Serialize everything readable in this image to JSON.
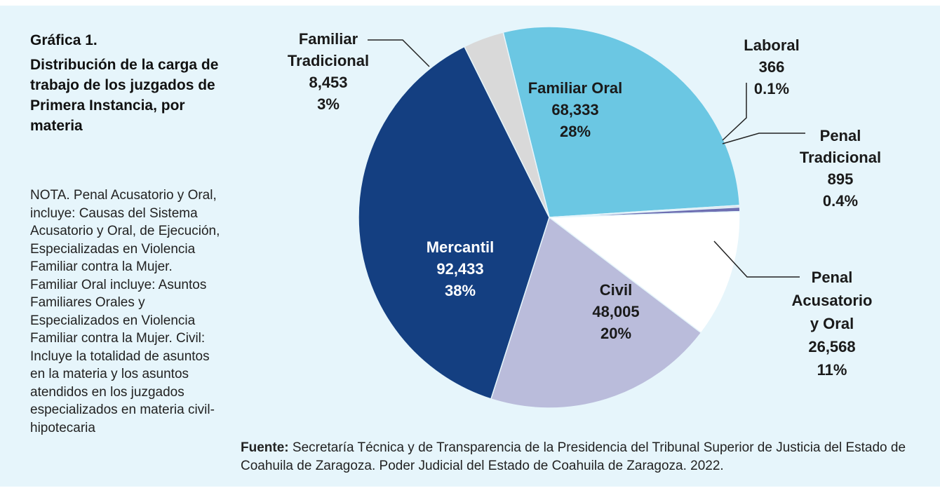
{
  "title": {
    "line1": "Gráfica 1.",
    "line2": "Distribución de la carga de trabajo de los juzgados de Primera Instancia, por materia"
  },
  "note": "NOTA. Penal Acusatorio y Oral, incluye: Causas del Sistema Acusatorio y Oral, de Ejecución, Especializadas en Violencia Familiar contra la Mujer. Familiar Oral incluye: Asuntos Familiares Orales y Especializados en Violencia Familiar contra la Mujer. Civil: Incluye la totalidad de asuntos en la materia y los asuntos atendidos en los juzgados especializados en materia civil-hipotecaria",
  "source": {
    "label": "Fuente:",
    "text": "Secretaría Técnica y de Transparencia de la Presidencia del Tribunal Superior de Justicia del Estado de Coahuila de Zaragoza. Poder Judicial del Estado de Coahuila de Zaragoza. 2022."
  },
  "chart_data": {
    "type": "pie",
    "slices": [
      {
        "name": "Familiar Oral",
        "value": 68333,
        "value_label": "68,333",
        "percent_label": "28%",
        "color": "#6bc7e3"
      },
      {
        "name": "Laboral",
        "value": 366,
        "value_label": "366",
        "percent_label": "0.1%",
        "color": "#d8d8e4"
      },
      {
        "name": "Penal Tradicional",
        "value": 895,
        "value_label": "895",
        "percent_label": "0.4%",
        "color": "#6e6fb2"
      },
      {
        "name": "Penal Acusatorio y Oral",
        "value": 26568,
        "value_label": "26,568",
        "percent_label": "11%",
        "color": "#ffffff"
      },
      {
        "name": "Civil",
        "value": 48005,
        "value_label": "48,005",
        "percent_label": "20%",
        "color": "#babcdb"
      },
      {
        "name": "Mercantil",
        "value": 92433,
        "value_label": "92,433",
        "percent_label": "38%",
        "color": "#143f81"
      },
      {
        "name": "Familiar Tradicional",
        "value": 8453,
        "value_label": "8,453",
        "percent_label": "3%",
        "color": "#d9d9d9"
      }
    ]
  }
}
